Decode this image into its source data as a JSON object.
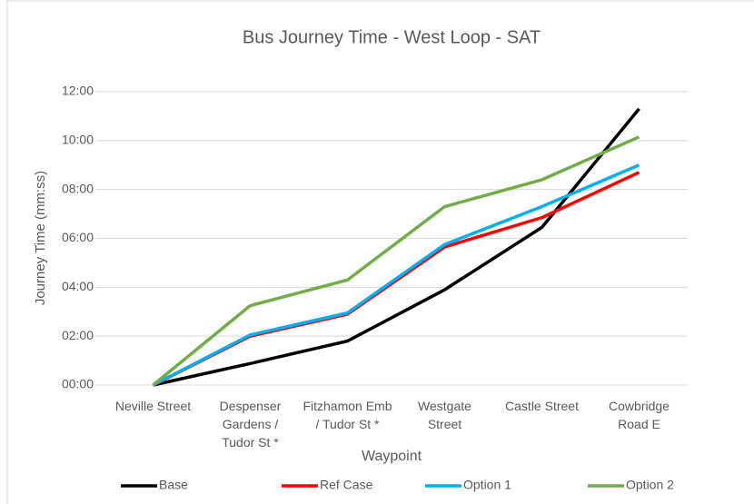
{
  "chart_data": {
    "type": "line",
    "title": "Bus Journey Time - West Loop - SAT",
    "x_label": "Waypoint",
    "y_label": "Journey Time (mm:ss)",
    "categories": [
      "Neville Street",
      "Despenser Gardens / Tudor St *",
      "Fitzhamon Emb / Tudor St *",
      "Westgate Street",
      "Castle Street",
      "Cowbridge Road E"
    ],
    "series": [
      {
        "name": "Base",
        "color": "#000000",
        "values": [
          0,
          0.88,
          1.8,
          3.9,
          6.45,
          11.3
        ]
      },
      {
        "name": "Ref Case",
        "color": "#ff0000",
        "values": [
          0,
          2.0,
          2.9,
          5.65,
          6.85,
          8.7
        ]
      },
      {
        "name": "Option 1",
        "color": "#00b0f0",
        "values": [
          0,
          2.05,
          2.95,
          5.75,
          7.3,
          9.0
        ]
      },
      {
        "name": "Option 2",
        "color": "#70ad47",
        "values": [
          0,
          3.25,
          4.3,
          7.3,
          8.4,
          10.15
        ]
      }
    ],
    "ylim": [
      0,
      12
    ],
    "yticks": [
      {
        "value": 0,
        "label": "00:00"
      },
      {
        "value": 2,
        "label": "02:00"
      },
      {
        "value": 4,
        "label": "04:00"
      },
      {
        "value": 6,
        "label": "06:00"
      },
      {
        "value": 8,
        "label": "08:00"
      },
      {
        "value": 10,
        "label": "10:00"
      },
      {
        "value": 12,
        "label": "12:00"
      }
    ],
    "grid": true,
    "legend": "bottom"
  }
}
